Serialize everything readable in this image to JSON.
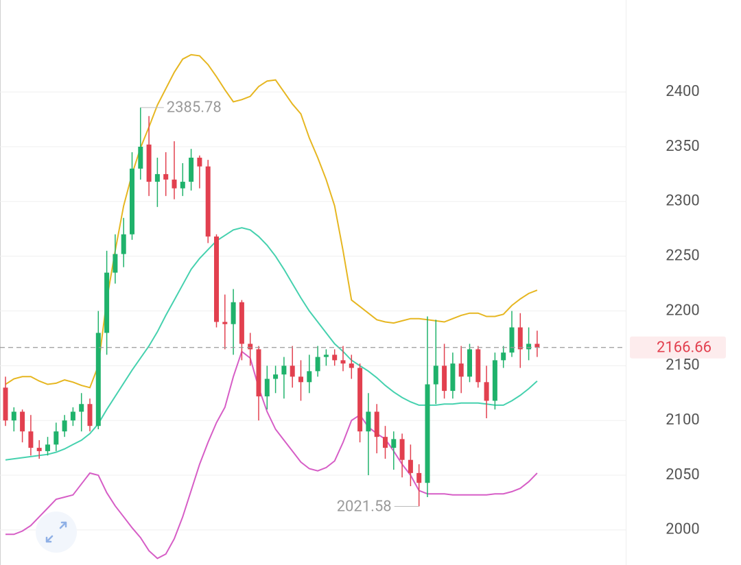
{
  "chart_data": {
    "type": "candlestick",
    "up_color": "#1fb26b",
    "down_color": "#e2404f",
    "grid": true,
    "ylim": [
      1968,
      2484
    ],
    "yticks": [
      2000,
      2050,
      2100,
      2150,
      2200,
      2250,
      2300,
      2350,
      2400
    ],
    "open": [
      2130,
      2100,
      2108,
      2090,
      2075,
      2072,
      2078,
      2090,
      2100,
      2108,
      2115,
      2095,
      2180,
      2235,
      2252,
      2270,
      2330,
      2352,
      2318,
      2325,
      2320,
      2312,
      2318,
      2340,
      2332,
      2268,
      2190,
      2188,
      2208,
      2170,
      2165,
      2122,
      2138,
      2142,
      2150,
      2140,
      2135,
      2145,
      2158,
      2160,
      2155,
      2152,
      2148,
      2090,
      2108,
      2085,
      2075,
      2083,
      2064,
      2052,
      2043,
      2133,
      2150,
      2127,
      2152,
      2140,
      2165,
      2135,
      2118,
      2155,
      2162,
      2185,
      2165,
      2170
    ],
    "high": [
      2140,
      2112,
      2110,
      2105,
      2082,
      2085,
      2098,
      2105,
      2112,
      2125,
      2120,
      2200,
      2255,
      2270,
      2285,
      2345,
      2385.78,
      2378,
      2340,
      2345,
      2355,
      2335,
      2348,
      2342,
      2338,
      2270,
      2215,
      2220,
      2210,
      2180,
      2168,
      2150,
      2150,
      2158,
      2168,
      2155,
      2160,
      2168,
      2165,
      2165,
      2168,
      2160,
      2152,
      2125,
      2115,
      2095,
      2090,
      2088,
      2078,
      2060,
      2195,
      2192,
      2170,
      2162,
      2168,
      2170,
      2168,
      2150,
      2162,
      2168,
      2200,
      2198,
      2185,
      2182
    ],
    "low": [
      2095,
      2090,
      2080,
      2068,
      2065,
      2068,
      2072,
      2085,
      2095,
      2090,
      2090,
      2092,
      2160,
      2225,
      2240,
      2265,
      2320,
      2305,
      2295,
      2305,
      2302,
      2305,
      2310,
      2312,
      2262,
      2185,
      2165,
      2160,
      2155,
      2150,
      2100,
      2110,
      2125,
      2120,
      2130,
      2118,
      2125,
      2140,
      2150,
      2150,
      2145,
      2138,
      2080,
      2050,
      2070,
      2065,
      2055,
      2048,
      2040,
      2021.58,
      2030,
      2115,
      2120,
      2120,
      2125,
      2135,
      2130,
      2102,
      2110,
      2148,
      2158,
      2148,
      2155,
      2158
    ],
    "close": [
      2100,
      2108,
      2090,
      2075,
      2072,
      2078,
      2090,
      2100,
      2108,
      2115,
      2095,
      2180,
      2235,
      2252,
      2270,
      2330,
      2350,
      2318,
      2325,
      2320,
      2312,
      2318,
      2340,
      2332,
      2268,
      2190,
      2188,
      2208,
      2170,
      2165,
      2122,
      2138,
      2142,
      2150,
      2140,
      2135,
      2145,
      2158,
      2160,
      2155,
      2152,
      2148,
      2090,
      2108,
      2085,
      2075,
      2083,
      2064,
      2052,
      2043,
      2133,
      2150,
      2127,
      2152,
      2140,
      2165,
      2135,
      2118,
      2155,
      2162,
      2185,
      2165,
      2170,
      2166.66
    ],
    "overlays": [
      {
        "color": "#e6b620",
        "values": [
          2133,
          2138,
          2140,
          2140,
          2136,
          2133,
          2134,
          2137,
          2135,
          2132,
          2130,
          2150,
          2210,
          2255,
          2296,
          2325,
          2349,
          2368,
          2388,
          2403,
          2418,
          2430,
          2434,
          2433,
          2425,
          2414,
          2402,
          2391,
          2393,
          2396,
          2405,
          2410,
          2411,
          2400,
          2389,
          2380,
          2358,
          2340,
          2320,
          2296,
          2255,
          2210,
          2204,
          2198,
          2192,
          2190,
          2189,
          2191,
          2193,
          2193,
          2192,
          2191,
          2190,
          2193,
          2196,
          2198,
          2198,
          2195,
          2195,
          2197,
          2205,
          2211,
          2216,
          2219
        ]
      },
      {
        "color": "#45d1ae",
        "values": [
          2064,
          2065,
          2066,
          2067,
          2068,
          2069,
          2071,
          2074,
          2078,
          2082,
          2088,
          2097,
          2110,
          2122,
          2134,
          2146,
          2157,
          2168,
          2181,
          2196,
          2210,
          2224,
          2238,
          2248,
          2256,
          2264,
          2269,
          2274,
          2276,
          2274,
          2268,
          2260,
          2250,
          2238,
          2225,
          2212,
          2200,
          2190,
          2180,
          2170,
          2163,
          2155,
          2150,
          2145,
          2139,
          2132,
          2126,
          2121,
          2117,
          2114,
          2114,
          2114,
          2115,
          2115,
          2116,
          2116,
          2116,
          2115,
          2114,
          2114,
          2118,
          2123,
          2129,
          2136
        ]
      },
      {
        "color": "#d65dc6",
        "values": [
          1996,
          1996,
          1999,
          2004,
          2012,
          2020,
          2028,
          2030,
          2032,
          2042,
          2052,
          2050,
          2034,
          2022,
          2012,
          2002,
          1993,
          1981,
          1974,
          1978,
          1992,
          2012,
          2036,
          2060,
          2080,
          2098,
          2112,
          2140,
          2163,
          2157,
          2130,
          2108,
          2092,
          2082,
          2072,
          2062,
          2056,
          2054,
          2057,
          2063,
          2080,
          2100,
          2105,
          2094,
          2088,
          2083,
          2072,
          2060,
          2050,
          2036,
          2033,
          2033,
          2033,
          2032,
          2032,
          2032,
          2032,
          2032,
          2033,
          2033,
          2035,
          2038,
          2044,
          2052
        ]
      }
    ]
  }
}
